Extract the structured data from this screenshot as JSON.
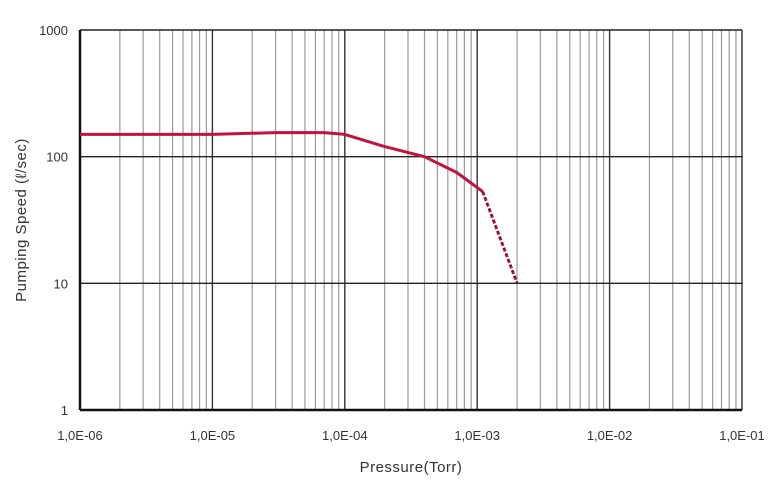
{
  "chart_data": {
    "type": "line",
    "title": "",
    "xlabel": "Pressure(Torr)",
    "ylabel": "Pumping Speed (ℓ/sec)",
    "xscale": "log",
    "yscale": "log",
    "xlim": [
      1e-06,
      0.1
    ],
    "ylim": [
      1,
      1000
    ],
    "grid": true,
    "x_tick_labels": [
      "1,0E-06",
      "1,0E-05",
      "1,0E-04",
      "1,0E-03",
      "1,0E-02",
      "1,0E-01"
    ],
    "y_tick_labels": [
      "1",
      "10",
      "100",
      "1000"
    ],
    "line_color": "#c0143c",
    "series": [
      {
        "style": "solid",
        "x": [
          1e-06,
          1e-05,
          3e-05,
          7e-05,
          0.0001,
          0.0002,
          0.0004,
          0.0007,
          0.0011
        ],
        "y": [
          150,
          150,
          155,
          155,
          150,
          120,
          100,
          75,
          53
        ]
      },
      {
        "style": "dashed",
        "x": [
          0.0011,
          0.002
        ],
        "y": [
          53,
          10
        ]
      }
    ]
  }
}
